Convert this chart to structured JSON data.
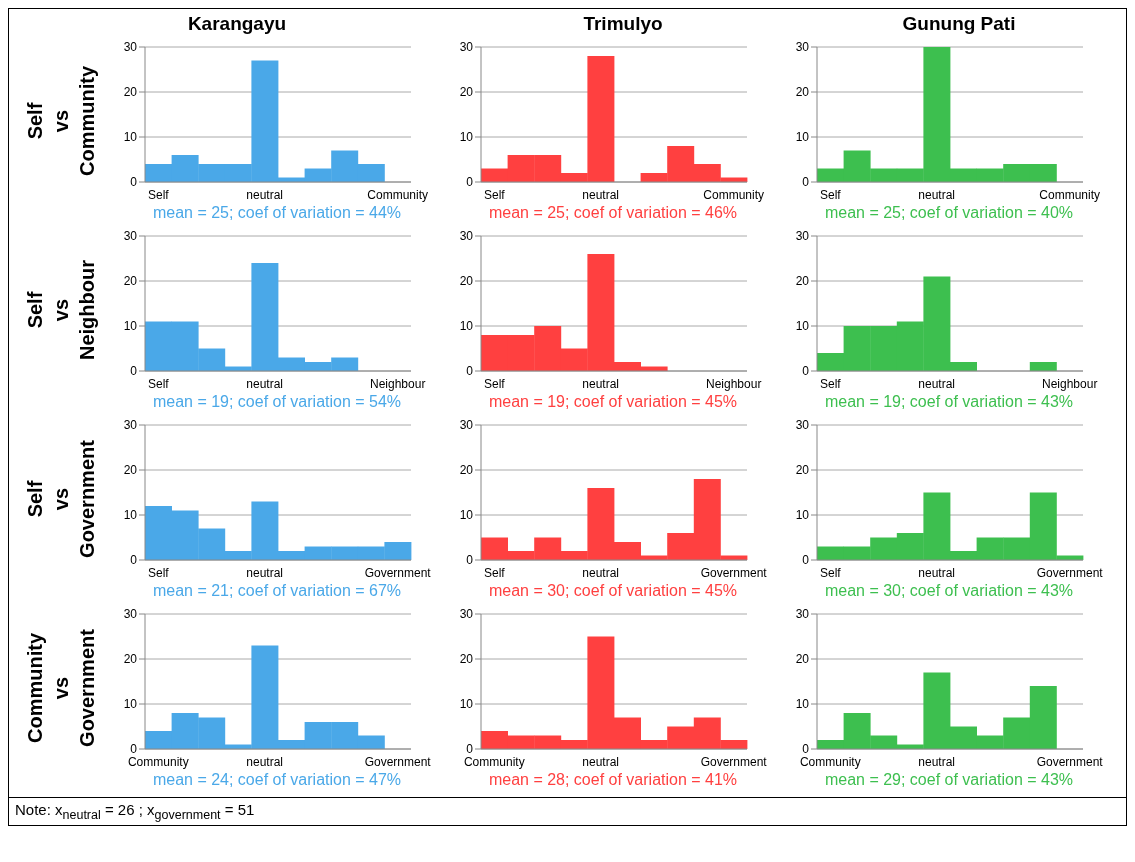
{
  "chart_data": [
    {
      "type": "bar",
      "title": "Karangayu",
      "ylabel": "Self vs Community",
      "categories": [
        "Self",
        null,
        null,
        null,
        "neutral",
        null,
        null,
        null,
        null,
        "Community"
      ],
      "values": [
        4,
        6,
        4,
        4,
        27,
        1,
        3,
        7,
        4,
        0
      ],
      "color": "#4aa8e8",
      "ylim": [
        0,
        30
      ],
      "yticks": [
        0,
        10,
        20,
        30
      ],
      "grid": "y",
      "annotations": [
        "mean = 25; coef of variation = 44%"
      ]
    },
    {
      "type": "bar",
      "title": "Trimulyo",
      "categories": [
        "Self",
        null,
        null,
        null,
        "neutral",
        null,
        null,
        null,
        null,
        "Community"
      ],
      "values": [
        3,
        6,
        6,
        2,
        28,
        0,
        2,
        8,
        4,
        1
      ],
      "color": "#ff4040",
      "ylim": [
        0,
        30
      ],
      "yticks": [
        0,
        10,
        20,
        30
      ],
      "grid": "y",
      "annotations": [
        "mean = 25; coef of variation = 46%"
      ]
    },
    {
      "type": "bar",
      "title": "Gunung Pati",
      "categories": [
        "Self",
        null,
        null,
        null,
        "neutral",
        null,
        null,
        null,
        null,
        "Community"
      ],
      "values": [
        3,
        7,
        3,
        3,
        30,
        3,
        3,
        4,
        4,
        0
      ],
      "color": "#3dbf4f",
      "ylim": [
        0,
        30
      ],
      "yticks": [
        0,
        10,
        20,
        30
      ],
      "grid": "y",
      "annotations": [
        "mean = 25; coef of variation = 40%"
      ]
    },
    {
      "type": "bar",
      "ylabel": "Self vs Neighbour",
      "categories": [
        "Self",
        null,
        null,
        null,
        "neutral",
        null,
        null,
        null,
        null,
        "Neighbour"
      ],
      "values": [
        11,
        11,
        5,
        1,
        24,
        3,
        2,
        3,
        0,
        0
      ],
      "color": "#4aa8e8",
      "ylim": [
        0,
        30
      ],
      "yticks": [
        0,
        10,
        20,
        30
      ],
      "grid": "y",
      "annotations": [
        "mean = 19; coef of variation = 54%"
      ]
    },
    {
      "type": "bar",
      "categories": [
        "Self",
        null,
        null,
        null,
        "neutral",
        null,
        null,
        null,
        null,
        "Neighbour"
      ],
      "values": [
        8,
        8,
        10,
        5,
        26,
        2,
        1,
        0,
        0,
        0
      ],
      "color": "#ff4040",
      "ylim": [
        0,
        30
      ],
      "yticks": [
        0,
        10,
        20,
        30
      ],
      "grid": "y",
      "annotations": [
        "mean = 19; coef of variation = 45%"
      ]
    },
    {
      "type": "bar",
      "categories": [
        "Self",
        null,
        null,
        null,
        "neutral",
        null,
        null,
        null,
        null,
        "Neighbour"
      ],
      "values": [
        4,
        10,
        10,
        11,
        21,
        2,
        0,
        0,
        2,
        0
      ],
      "color": "#3dbf4f",
      "ylim": [
        0,
        30
      ],
      "yticks": [
        0,
        10,
        20,
        30
      ],
      "grid": "y",
      "annotations": [
        "mean = 19; coef of variation = 43%"
      ]
    },
    {
      "type": "bar",
      "ylabel": "Self vs Government",
      "categories": [
        "Self",
        null,
        null,
        null,
        "neutral",
        null,
        null,
        null,
        null,
        "Government"
      ],
      "values": [
        12,
        11,
        7,
        2,
        13,
        2,
        3,
        3,
        3,
        4
      ],
      "color": "#4aa8e8",
      "ylim": [
        0,
        30
      ],
      "yticks": [
        0,
        10,
        20,
        30
      ],
      "grid": "y",
      "annotations": [
        "mean = 21; coef of variation = 67%"
      ]
    },
    {
      "type": "bar",
      "categories": [
        "Self",
        null,
        null,
        null,
        "neutral",
        null,
        null,
        null,
        null,
        "Government"
      ],
      "values": [
        5,
        2,
        5,
        2,
        16,
        4,
        1,
        6,
        18,
        1
      ],
      "color": "#ff4040",
      "ylim": [
        0,
        30
      ],
      "yticks": [
        0,
        10,
        20,
        30
      ],
      "grid": "y",
      "annotations": [
        "mean = 30; coef of variation = 45%"
      ]
    },
    {
      "type": "bar",
      "categories": [
        "Self",
        null,
        null,
        null,
        "neutral",
        null,
        null,
        null,
        null,
        "Government"
      ],
      "values": [
        3,
        3,
        5,
        6,
        15,
        2,
        5,
        5,
        15,
        1
      ],
      "color": "#3dbf4f",
      "ylim": [
        0,
        30
      ],
      "yticks": [
        0,
        10,
        20,
        30
      ],
      "grid": "y",
      "annotations": [
        "mean = 30; coef of variation = 43%"
      ]
    },
    {
      "type": "bar",
      "ylabel": "Community vs Government",
      "categories": [
        "Community",
        null,
        null,
        null,
        "neutral",
        null,
        null,
        null,
        null,
        "Government"
      ],
      "values": [
        4,
        8,
        7,
        1,
        23,
        2,
        6,
        6,
        3,
        0
      ],
      "color": "#4aa8e8",
      "ylim": [
        0,
        30
      ],
      "yticks": [
        0,
        10,
        20,
        30
      ],
      "grid": "y",
      "annotations": [
        "mean = 24; coef of variation = 47%",
        "Note:   x$_{neutral}$ = 26 ; x$_{government}$ = 51"
      ]
    },
    {
      "type": "bar",
      "categories": [
        "Community",
        null,
        null,
        null,
        "neutral",
        null,
        null,
        null,
        null,
        "Government"
      ],
      "values": [
        4,
        3,
        3,
        2,
        25,
        7,
        2,
        5,
        7,
        2
      ],
      "color": "#ff4040",
      "ylim": [
        0,
        30
      ],
      "yticks": [
        0,
        10,
        20,
        30
      ],
      "grid": "y",
      "annotations": [
        "mean = 28; coef of variation = 41%"
      ]
    },
    {
      "type": "bar",
      "categories": [
        "Community",
        null,
        null,
        null,
        "neutral",
        null,
        null,
        null,
        null,
        "Government"
      ],
      "values": [
        2,
        8,
        3,
        1,
        17,
        5,
        3,
        7,
        14,
        0
      ],
      "color": "#3dbf4f",
      "ylim": [
        0,
        30
      ],
      "yticks": [
        0,
        10,
        20,
        30
      ],
      "grid": "y",
      "annotations": [
        "mean = 29; coef of variation = 43%"
      ]
    }
  ]
}
